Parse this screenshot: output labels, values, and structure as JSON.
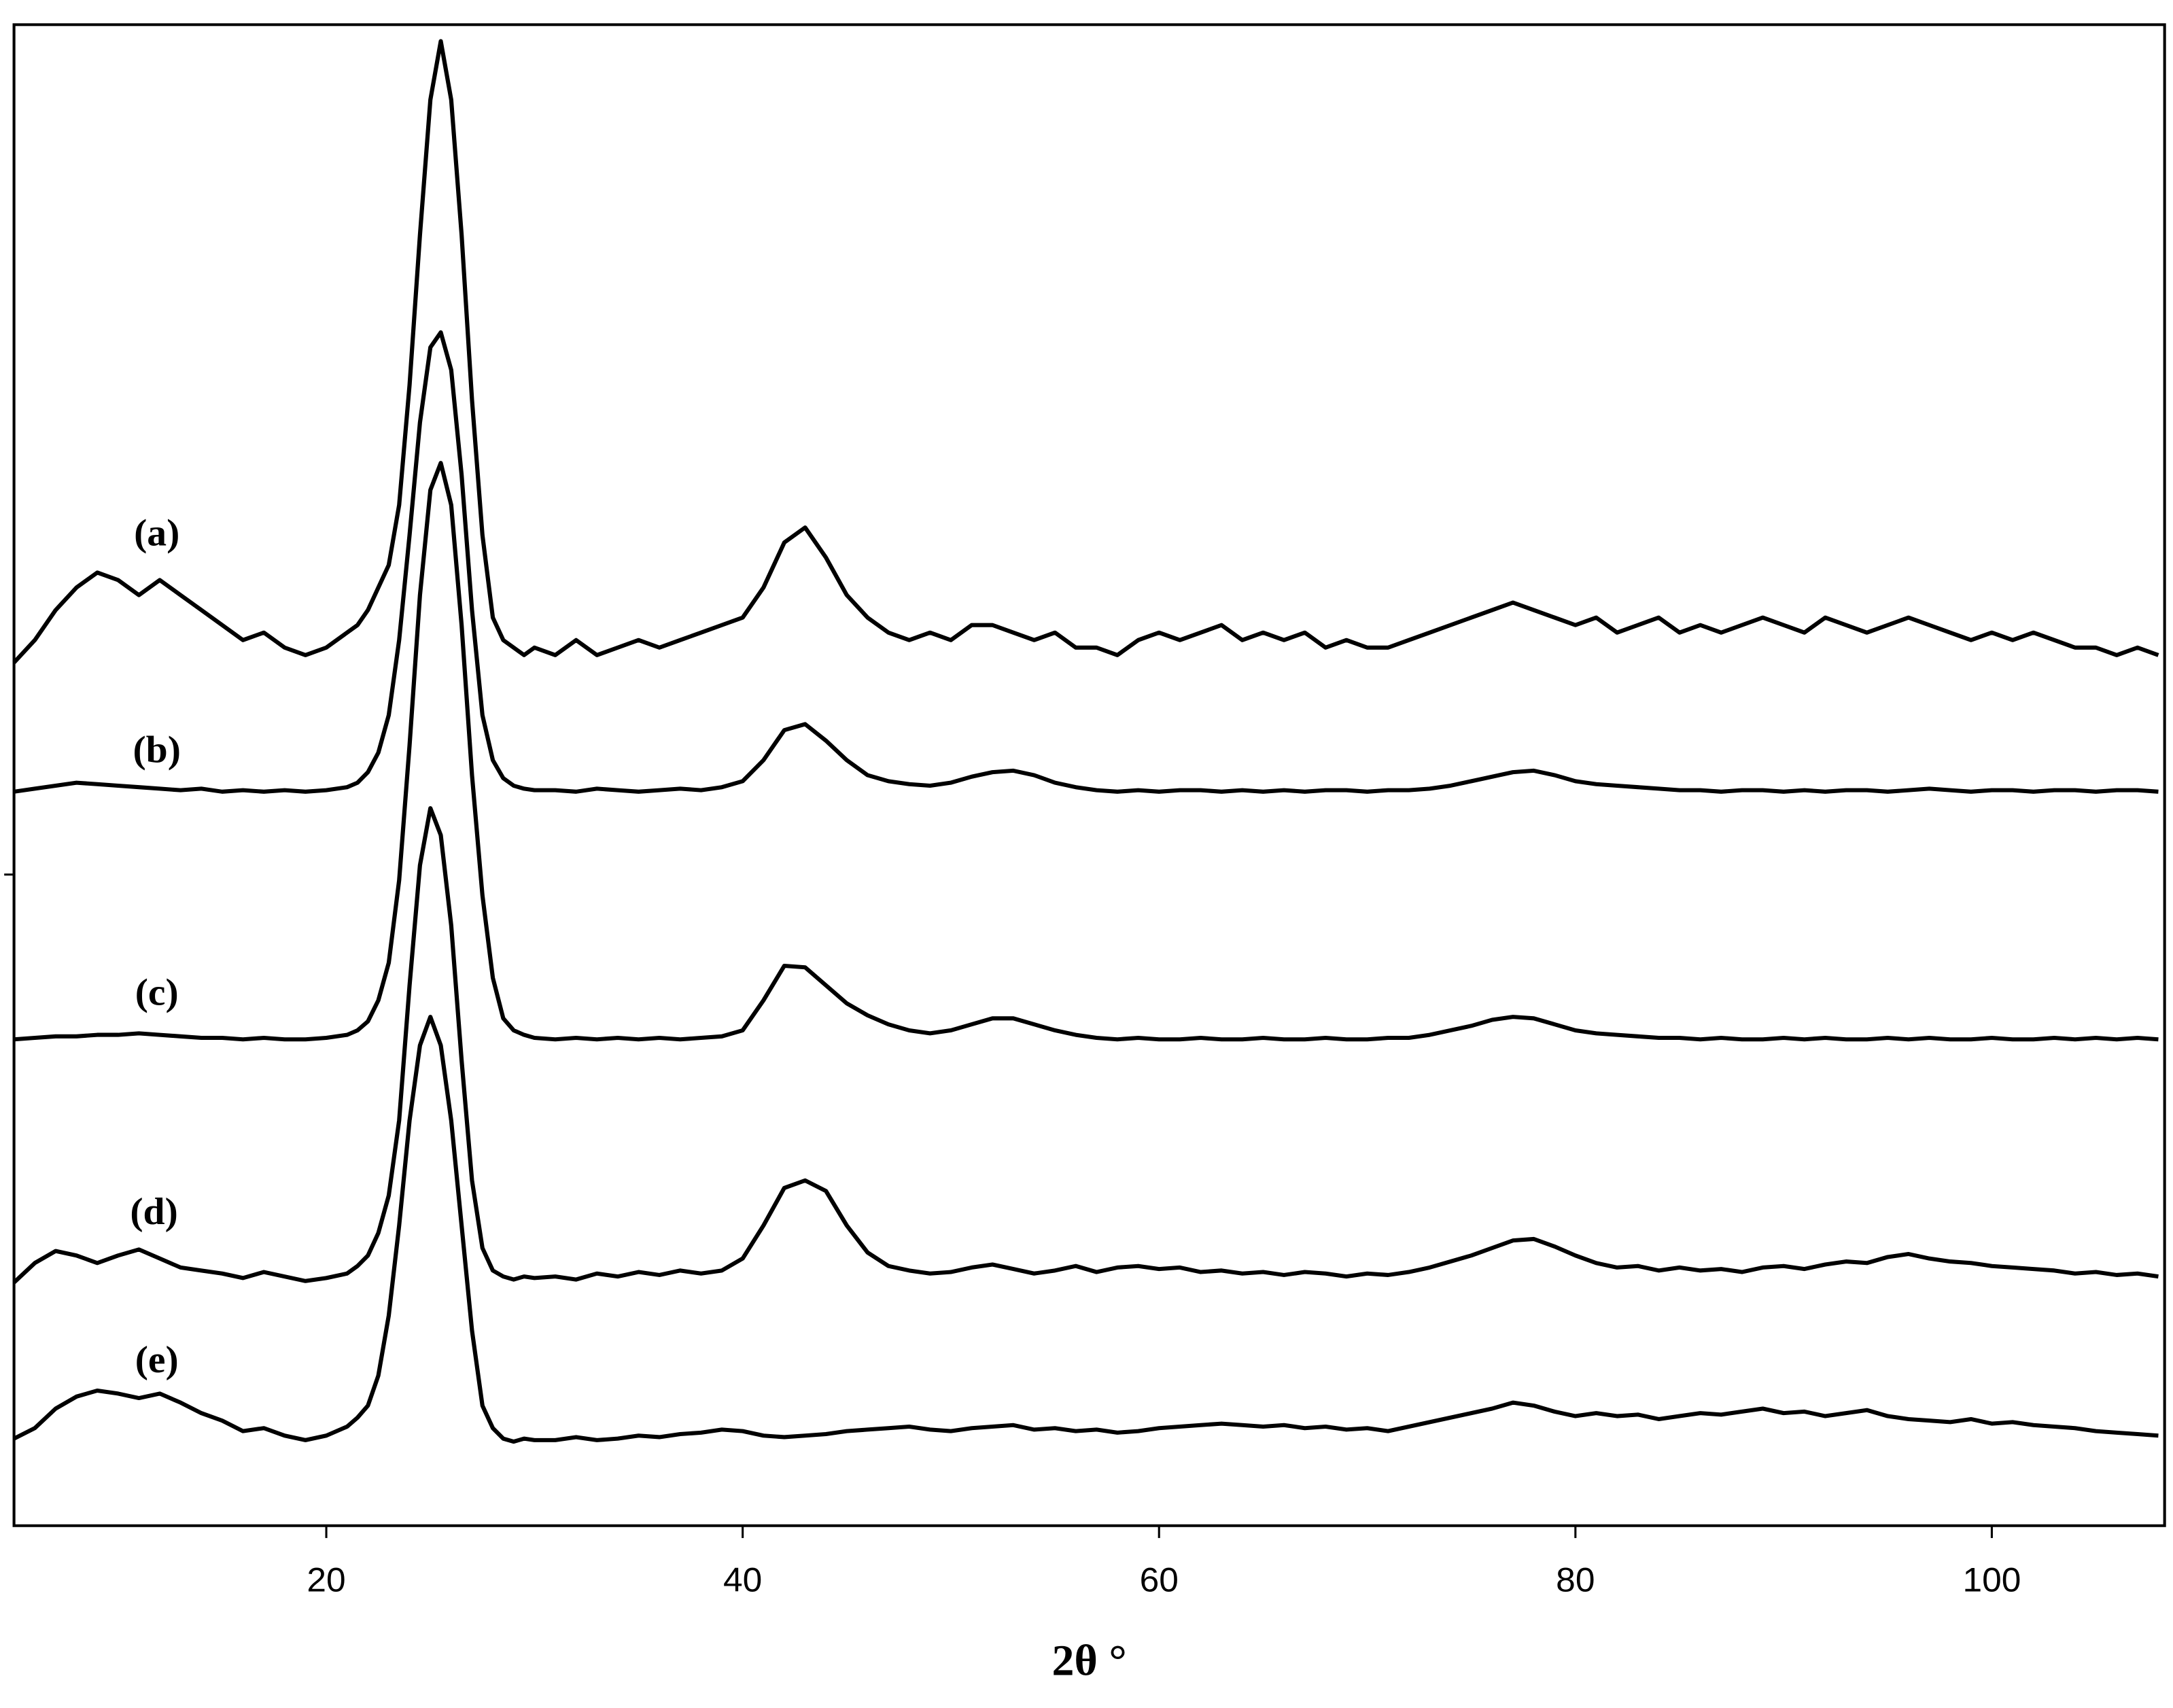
{
  "chart_data": {
    "type": "line",
    "xlabel": "2θ °",
    "xlim": [
      5,
      108.3
    ],
    "ylim": [
      0,
      100
    ],
    "xticks": [
      20,
      40,
      60,
      80,
      100
    ],
    "grid": false,
    "x": [
      5,
      6,
      7,
      8,
      9,
      10,
      11,
      12,
      13,
      14,
      15,
      16,
      17,
      18,
      19,
      20,
      21,
      21.5,
      22,
      22.5,
      23,
      23.5,
      24,
      24.5,
      25,
      25.5,
      26,
      26.5,
      27,
      27.5,
      28,
      28.5,
      29,
      29.5,
      30,
      31,
      32,
      33,
      34,
      35,
      36,
      37,
      38,
      39,
      40,
      41,
      42,
      43,
      44,
      45,
      46,
      47,
      48,
      49,
      50,
      51,
      52,
      53,
      54,
      55,
      56,
      57,
      58,
      59,
      60,
      61,
      62,
      63,
      64,
      65,
      66,
      67,
      68,
      69,
      70,
      71,
      72,
      73,
      74,
      75,
      76,
      77,
      78,
      79,
      80,
      81,
      82,
      83,
      84,
      85,
      86,
      87,
      88,
      89,
      90,
      91,
      92,
      93,
      94,
      95,
      96,
      97,
      98,
      99,
      100,
      101,
      102,
      103,
      104,
      105,
      106,
      107,
      108
    ],
    "series": [
      {
        "name": "(a)",
        "color": "#000000",
        "values": [
          57.5,
          59,
          61,
          62.5,
          63.5,
          63,
          62,
          63,
          62,
          61,
          60,
          59,
          59.5,
          58.5,
          58,
          58.5,
          59.5,
          60,
          61,
          62.5,
          64,
          68,
          76,
          86,
          95,
          98.9,
          95,
          86,
          75,
          66,
          60.5,
          59,
          58.5,
          58,
          58.5,
          58,
          59,
          58,
          58.5,
          59,
          58.5,
          59,
          59.5,
          60,
          60.5,
          62.5,
          65.5,
          66.5,
          64.5,
          62,
          60.5,
          59.5,
          59,
          59.5,
          59,
          60,
          60,
          59.5,
          59,
          59.5,
          58.5,
          58.5,
          58,
          59,
          59.5,
          59,
          59.5,
          60,
          59,
          59.5,
          59,
          59.5,
          58.5,
          59,
          58.5,
          58.5,
          59,
          59.5,
          60,
          60.5,
          61,
          61.5,
          61,
          60.5,
          60,
          60.5,
          59.5,
          60,
          60.5,
          59.5,
          60,
          59.5,
          60,
          60.5,
          60,
          59.5,
          60.5,
          60,
          59.5,
          60,
          60.5,
          60,
          59.5,
          59,
          59.5,
          59,
          59.5,
          59,
          58.5,
          58.5,
          58,
          58.5,
          58
        ]
      },
      {
        "name": "(b)",
        "color": "#000000",
        "values": [
          48.9,
          49.1,
          49.3,
          49.5,
          49.4,
          49.3,
          49.2,
          49.1,
          49,
          49.1,
          48.9,
          49,
          48.9,
          49,
          48.9,
          49,
          49.2,
          49.5,
          50.2,
          51.5,
          54,
          59,
          66,
          73.5,
          78.5,
          79.5,
          77,
          70,
          61,
          54,
          51,
          49.8,
          49.3,
          49.1,
          49,
          49,
          48.9,
          49.1,
          49,
          48.9,
          49,
          49.1,
          49,
          49.2,
          49.6,
          51,
          53,
          53.4,
          52.3,
          51,
          50,
          49.6,
          49.4,
          49.3,
          49.5,
          49.9,
          50.2,
          50.3,
          50,
          49.5,
          49.2,
          49,
          48.9,
          49,
          48.9,
          49,
          49,
          48.9,
          49,
          48.9,
          49,
          48.9,
          49,
          49,
          48.9,
          49,
          49,
          49.1,
          49.3,
          49.6,
          49.9,
          50.2,
          50.3,
          50,
          49.6,
          49.4,
          49.3,
          49.2,
          49.1,
          49,
          49,
          48.9,
          49,
          49,
          48.9,
          49,
          48.9,
          49,
          49,
          48.9,
          49,
          49.1,
          49,
          48.9,
          49,
          49,
          48.9,
          49,
          49,
          48.9,
          49,
          49,
          48.9
        ]
      },
      {
        "name": "(c)",
        "color": "#000000",
        "values": [
          32.4,
          32.5,
          32.6,
          32.6,
          32.7,
          32.7,
          32.8,
          32.7,
          32.6,
          32.5,
          32.5,
          32.4,
          32.5,
          32.4,
          32.4,
          32.5,
          32.7,
          33,
          33.6,
          35,
          37.5,
          43,
          52,
          62,
          69,
          70.8,
          68,
          60,
          50,
          42,
          36.5,
          33.8,
          33,
          32.7,
          32.5,
          32.4,
          32.5,
          32.4,
          32.5,
          32.4,
          32.5,
          32.4,
          32.5,
          32.6,
          33,
          35,
          37.3,
          37.2,
          36,
          34.8,
          34,
          33.4,
          33,
          32.8,
          33,
          33.4,
          33.8,
          33.8,
          33.4,
          33,
          32.7,
          32.5,
          32.4,
          32.5,
          32.4,
          32.4,
          32.5,
          32.4,
          32.4,
          32.5,
          32.4,
          32.4,
          32.5,
          32.4,
          32.4,
          32.5,
          32.5,
          32.7,
          33,
          33.3,
          33.7,
          33.9,
          33.8,
          33.4,
          33,
          32.8,
          32.7,
          32.6,
          32.5,
          32.5,
          32.4,
          32.5,
          32.4,
          32.4,
          32.5,
          32.4,
          32.5,
          32.4,
          32.4,
          32.5,
          32.4,
          32.5,
          32.4,
          32.4,
          32.5,
          32.4,
          32.4,
          32.5,
          32.4,
          32.5,
          32.4,
          32.5,
          32.4
        ]
      },
      {
        "name": "(d)",
        "color": "#000000",
        "values": [
          16.2,
          17.5,
          18.3,
          18,
          17.5,
          18,
          18.4,
          17.8,
          17.2,
          17,
          16.8,
          16.5,
          16.9,
          16.6,
          16.3,
          16.5,
          16.8,
          17.3,
          18,
          19.5,
          22,
          27,
          36,
          44,
          47.8,
          46,
          40,
          31,
          23,
          18.5,
          17,
          16.6,
          16.4,
          16.6,
          16.5,
          16.6,
          16.4,
          16.8,
          16.6,
          16.9,
          16.7,
          17,
          16.8,
          17,
          17.8,
          20,
          22.5,
          23,
          22.3,
          20,
          18.2,
          17.3,
          17,
          16.8,
          16.9,
          17.2,
          17.4,
          17.1,
          16.8,
          17,
          17.3,
          16.9,
          17.2,
          17.3,
          17.1,
          17.2,
          16.9,
          17,
          16.8,
          16.9,
          16.7,
          16.9,
          16.8,
          16.6,
          16.8,
          16.7,
          16.9,
          17.2,
          17.6,
          18,
          18.5,
          19,
          19.1,
          18.6,
          18,
          17.5,
          17.2,
          17.3,
          17,
          17.2,
          17,
          17.1,
          16.9,
          17.2,
          17.3,
          17.1,
          17.4,
          17.6,
          17.5,
          17.9,
          18.1,
          17.8,
          17.6,
          17.5,
          17.3,
          17.2,
          17.1,
          17,
          16.8,
          16.9,
          16.7,
          16.8,
          16.6
        ]
      },
      {
        "name": "(e)",
        "color": "#000000",
        "values": [
          5.8,
          6.5,
          7.8,
          8.6,
          9,
          8.8,
          8.5,
          8.8,
          8.2,
          7.5,
          7,
          6.3,
          6.5,
          6,
          5.7,
          6,
          6.6,
          7.2,
          8,
          10,
          14,
          20,
          27,
          32,
          33.9,
          32,
          27,
          20,
          13,
          8,
          6.5,
          5.8,
          5.6,
          5.8,
          5.7,
          5.7,
          5.9,
          5.7,
          5.8,
          6,
          5.9,
          6.1,
          6.2,
          6.4,
          6.3,
          6,
          5.9,
          6,
          6.1,
          6.3,
          6.4,
          6.5,
          6.6,
          6.4,
          6.3,
          6.5,
          6.6,
          6.7,
          6.4,
          6.5,
          6.3,
          6.4,
          6.2,
          6.3,
          6.5,
          6.6,
          6.7,
          6.8,
          6.7,
          6.6,
          6.7,
          6.5,
          6.6,
          6.4,
          6.5,
          6.3,
          6.6,
          6.9,
          7.2,
          7.5,
          7.8,
          8.2,
          8,
          7.6,
          7.3,
          7.5,
          7.3,
          7.4,
          7.1,
          7.3,
          7.5,
          7.4,
          7.6,
          7.8,
          7.5,
          7.6,
          7.3,
          7.5,
          7.7,
          7.3,
          7.1,
          7,
          6.9,
          7.1,
          6.8,
          6.9,
          6.7,
          6.6,
          6.5,
          6.3,
          6.2,
          6.1,
          6
        ]
      }
    ]
  }
}
